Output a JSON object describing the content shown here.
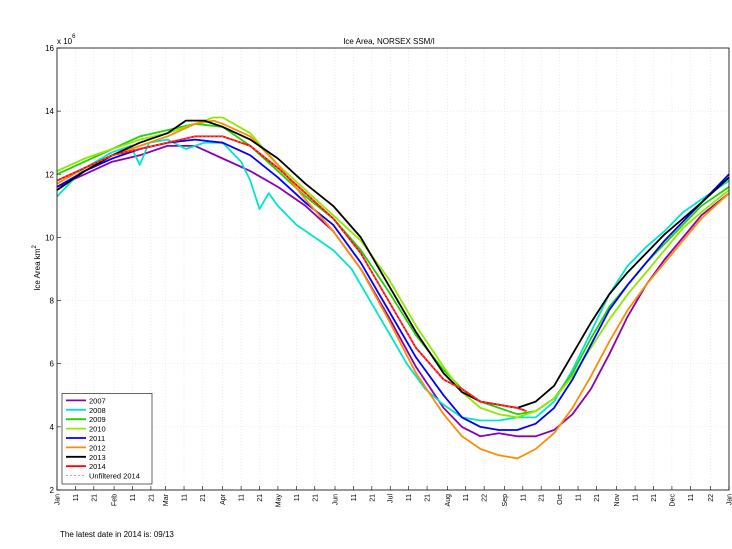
{
  "chart_data": {
    "type": "line",
    "title": "Ice Area, NORSEX SSM/I",
    "ylabel": "Ice Area km²",
    "ylabel_text": "Ice Area km",
    "ylabel_sup": "2",
    "exponent_base": "x 10",
    "exponent_power": "6",
    "ylim": [
      2,
      16
    ],
    "yticks": [
      2,
      4,
      6,
      8,
      10,
      12,
      14,
      16
    ],
    "xlim": [
      0,
      365
    ],
    "xticks": [
      {
        "d": 0,
        "label": "Jan"
      },
      {
        "d": 10,
        "label": "11"
      },
      {
        "d": 20,
        "label": "21"
      },
      {
        "d": 31,
        "label": "Feb"
      },
      {
        "d": 41,
        "label": "11"
      },
      {
        "d": 51,
        "label": "21"
      },
      {
        "d": 59,
        "label": "Mar"
      },
      {
        "d": 69,
        "label": "11"
      },
      {
        "d": 79,
        "label": "21"
      },
      {
        "d": 90,
        "label": "Apr"
      },
      {
        "d": 100,
        "label": "11"
      },
      {
        "d": 110,
        "label": "21"
      },
      {
        "d": 120,
        "label": "May"
      },
      {
        "d": 130,
        "label": "11"
      },
      {
        "d": 140,
        "label": "21"
      },
      {
        "d": 151,
        "label": "Jun"
      },
      {
        "d": 161,
        "label": "11"
      },
      {
        "d": 171,
        "label": "21"
      },
      {
        "d": 181,
        "label": "Jul"
      },
      {
        "d": 191,
        "label": "11"
      },
      {
        "d": 201,
        "label": "21"
      },
      {
        "d": 212,
        "label": "Aug"
      },
      {
        "d": 222,
        "label": "11"
      },
      {
        "d": 232,
        "label": "22"
      },
      {
        "d": 243,
        "label": "Sep"
      },
      {
        "d": 253,
        "label": "11"
      },
      {
        "d": 263,
        "label": "21"
      },
      {
        "d": 273,
        "label": "Oct"
      },
      {
        "d": 283,
        "label": "11"
      },
      {
        "d": 293,
        "label": "21"
      },
      {
        "d": 304,
        "label": "Nov"
      },
      {
        "d": 314,
        "label": "11"
      },
      {
        "d": 324,
        "label": "21"
      },
      {
        "d": 334,
        "label": "Dec"
      },
      {
        "d": 344,
        "label": "11"
      },
      {
        "d": 355,
        "label": "22"
      },
      {
        "d": 365,
        "label": "Jan"
      }
    ],
    "grid": true,
    "legend_position": "bottom-left",
    "series": [
      {
        "name": "2007",
        "color": "#8c00b4",
        "points": [
          [
            0,
            11.6
          ],
          [
            15,
            12.0
          ],
          [
            30,
            12.4
          ],
          [
            45,
            12.6
          ],
          [
            60,
            12.9
          ],
          [
            75,
            12.9
          ],
          [
            90,
            12.5
          ],
          [
            105,
            12.1
          ],
          [
            120,
            11.6
          ],
          [
            135,
            11.0
          ],
          [
            150,
            10.2
          ],
          [
            165,
            9.0
          ],
          [
            180,
            7.5
          ],
          [
            195,
            5.9
          ],
          [
            210,
            4.6
          ],
          [
            220,
            4.0
          ],
          [
            230,
            3.7
          ],
          [
            240,
            3.8
          ],
          [
            250,
            3.7
          ],
          [
            260,
            3.7
          ],
          [
            270,
            3.9
          ],
          [
            280,
            4.4
          ],
          [
            290,
            5.2
          ],
          [
            300,
            6.3
          ],
          [
            310,
            7.5
          ],
          [
            320,
            8.5
          ],
          [
            330,
            9.3
          ],
          [
            340,
            10.0
          ],
          [
            350,
            10.7
          ],
          [
            365,
            11.4
          ]
        ]
      },
      {
        "name": "2008",
        "color": "#00e5d0",
        "points": [
          [
            0,
            11.3
          ],
          [
            15,
            12.2
          ],
          [
            30,
            12.7
          ],
          [
            40,
            12.9
          ],
          [
            45,
            12.3
          ],
          [
            50,
            13.0
          ],
          [
            60,
            13.1
          ],
          [
            70,
            12.8
          ],
          [
            80,
            13.0
          ],
          [
            90,
            13.0
          ],
          [
            100,
            12.4
          ],
          [
            105,
            11.8
          ],
          [
            110,
            10.9
          ],
          [
            115,
            11.4
          ],
          [
            120,
            11.0
          ],
          [
            130,
            10.4
          ],
          [
            140,
            10.0
          ],
          [
            150,
            9.6
          ],
          [
            160,
            9.0
          ],
          [
            170,
            8.0
          ],
          [
            180,
            7.0
          ],
          [
            190,
            6.0
          ],
          [
            200,
            5.2
          ],
          [
            210,
            4.7
          ],
          [
            220,
            4.3
          ],
          [
            230,
            4.2
          ],
          [
            240,
            4.2
          ],
          [
            250,
            4.3
          ],
          [
            260,
            4.3
          ],
          [
            270,
            4.8
          ],
          [
            280,
            5.8
          ],
          [
            290,
            7.0
          ],
          [
            300,
            8.2
          ],
          [
            310,
            9.1
          ],
          [
            320,
            9.7
          ],
          [
            330,
            10.2
          ],
          [
            340,
            10.8
          ],
          [
            350,
            11.2
          ],
          [
            365,
            11.8
          ]
        ]
      },
      {
        "name": "2009",
        "color": "#1ed400",
        "points": [
          [
            0,
            12.0
          ],
          [
            15,
            12.4
          ],
          [
            30,
            12.8
          ],
          [
            45,
            13.2
          ],
          [
            60,
            13.4
          ],
          [
            75,
            13.6
          ],
          [
            90,
            13.5
          ],
          [
            105,
            12.9
          ],
          [
            120,
            12.1
          ],
          [
            135,
            11.3
          ],
          [
            150,
            10.6
          ],
          [
            165,
            9.6
          ],
          [
            180,
            8.3
          ],
          [
            195,
            6.9
          ],
          [
            210,
            5.8
          ],
          [
            220,
            5.2
          ],
          [
            230,
            4.8
          ],
          [
            240,
            4.6
          ],
          [
            250,
            4.4
          ],
          [
            260,
            4.5
          ],
          [
            270,
            4.9
          ],
          [
            280,
            5.7
          ],
          [
            290,
            6.8
          ],
          [
            300,
            7.8
          ],
          [
            310,
            8.5
          ],
          [
            320,
            9.2
          ],
          [
            330,
            9.8
          ],
          [
            340,
            10.4
          ],
          [
            350,
            11.0
          ],
          [
            365,
            11.6
          ]
        ]
      },
      {
        "name": "2010",
        "color": "#90e800",
        "points": [
          [
            0,
            12.1
          ],
          [
            15,
            12.5
          ],
          [
            30,
            12.8
          ],
          [
            45,
            13.1
          ],
          [
            60,
            13.3
          ],
          [
            75,
            13.6
          ],
          [
            85,
            13.8
          ],
          [
            90,
            13.8
          ],
          [
            105,
            13.3
          ],
          [
            120,
            12.3
          ],
          [
            135,
            11.5
          ],
          [
            150,
            10.7
          ],
          [
            165,
            9.9
          ],
          [
            180,
            8.7
          ],
          [
            195,
            7.2
          ],
          [
            210,
            5.9
          ],
          [
            220,
            5.1
          ],
          [
            230,
            4.6
          ],
          [
            240,
            4.4
          ],
          [
            250,
            4.3
          ],
          [
            260,
            4.5
          ],
          [
            270,
            4.9
          ],
          [
            280,
            5.6
          ],
          [
            290,
            6.5
          ],
          [
            300,
            7.4
          ],
          [
            310,
            8.2
          ],
          [
            320,
            8.9
          ],
          [
            330,
            9.6
          ],
          [
            340,
            10.3
          ],
          [
            350,
            10.8
          ],
          [
            365,
            11.5
          ]
        ]
      },
      {
        "name": "2011",
        "color": "#0000ff",
        "points": [
          [
            0,
            11.6
          ],
          [
            15,
            12.1
          ],
          [
            30,
            12.5
          ],
          [
            45,
            12.8
          ],
          [
            60,
            13.0
          ],
          [
            75,
            13.1
          ],
          [
            90,
            13.0
          ],
          [
            105,
            12.6
          ],
          [
            120,
            11.9
          ],
          [
            135,
            11.1
          ],
          [
            150,
            10.4
          ],
          [
            165,
            9.2
          ],
          [
            180,
            7.7
          ],
          [
            195,
            6.2
          ],
          [
            210,
            5.0
          ],
          [
            220,
            4.3
          ],
          [
            230,
            4.0
          ],
          [
            240,
            3.9
          ],
          [
            250,
            3.9
          ],
          [
            260,
            4.1
          ],
          [
            270,
            4.6
          ],
          [
            280,
            5.5
          ],
          [
            290,
            6.6
          ],
          [
            300,
            7.7
          ],
          [
            310,
            8.5
          ],
          [
            320,
            9.2
          ],
          [
            330,
            9.9
          ],
          [
            340,
            10.5
          ],
          [
            350,
            11.1
          ],
          [
            365,
            12.0
          ]
        ]
      },
      {
        "name": "2012",
        "color": "#ff8c00",
        "points": [
          [
            0,
            11.7
          ],
          [
            15,
            12.2
          ],
          [
            30,
            12.6
          ],
          [
            45,
            12.9
          ],
          [
            60,
            13.2
          ],
          [
            75,
            13.6
          ],
          [
            85,
            13.7
          ],
          [
            90,
            13.6
          ],
          [
            105,
            13.2
          ],
          [
            120,
            12.3
          ],
          [
            135,
            11.2
          ],
          [
            150,
            10.2
          ],
          [
            165,
            9.0
          ],
          [
            180,
            7.4
          ],
          [
            195,
            5.7
          ],
          [
            210,
            4.4
          ],
          [
            220,
            3.7
          ],
          [
            230,
            3.3
          ],
          [
            240,
            3.1
          ],
          [
            250,
            3.0
          ],
          [
            260,
            3.3
          ],
          [
            270,
            3.8
          ],
          [
            280,
            4.6
          ],
          [
            290,
            5.6
          ],
          [
            300,
            6.7
          ],
          [
            310,
            7.7
          ],
          [
            320,
            8.5
          ],
          [
            330,
            9.2
          ],
          [
            340,
            9.9
          ],
          [
            350,
            10.6
          ],
          [
            365,
            11.4
          ]
        ]
      },
      {
        "name": "2013",
        "color": "#000000",
        "points": [
          [
            0,
            11.5
          ],
          [
            15,
            12.1
          ],
          [
            30,
            12.6
          ],
          [
            45,
            13.0
          ],
          [
            60,
            13.3
          ],
          [
            70,
            13.7
          ],
          [
            80,
            13.7
          ],
          [
            90,
            13.5
          ],
          [
            105,
            13.1
          ],
          [
            120,
            12.5
          ],
          [
            135,
            11.7
          ],
          [
            150,
            11.0
          ],
          [
            165,
            10.0
          ],
          [
            180,
            8.5
          ],
          [
            195,
            7.0
          ],
          [
            210,
            5.7
          ],
          [
            220,
            5.1
          ],
          [
            230,
            4.8
          ],
          [
            240,
            4.7
          ],
          [
            250,
            4.6
          ],
          [
            260,
            4.8
          ],
          [
            270,
            5.3
          ],
          [
            280,
            6.3
          ],
          [
            290,
            7.3
          ],
          [
            300,
            8.2
          ],
          [
            310,
            8.9
          ],
          [
            320,
            9.5
          ],
          [
            330,
            10.1
          ],
          [
            340,
            10.6
          ],
          [
            350,
            11.1
          ],
          [
            365,
            11.9
          ]
        ]
      },
      {
        "name": "2014",
        "color": "#ff0000",
        "points": [
          [
            0,
            11.8
          ],
          [
            15,
            12.2
          ],
          [
            30,
            12.6
          ],
          [
            45,
            12.8
          ],
          [
            60,
            13.0
          ],
          [
            75,
            13.2
          ],
          [
            90,
            13.2
          ],
          [
            105,
            12.9
          ],
          [
            120,
            12.2
          ],
          [
            135,
            11.4
          ],
          [
            150,
            10.6
          ],
          [
            165,
            9.5
          ],
          [
            180,
            8.0
          ],
          [
            195,
            6.5
          ],
          [
            210,
            5.5
          ],
          [
            220,
            5.2
          ],
          [
            230,
            4.8
          ],
          [
            240,
            4.7
          ],
          [
            250,
            4.6
          ],
          [
            255,
            4.5
          ]
        ]
      },
      {
        "name": "Unfiltered 2014",
        "color": "#ff6666",
        "dashed": true,
        "points": [
          [
            0,
            11.8
          ],
          [
            15,
            12.2
          ],
          [
            30,
            12.6
          ],
          [
            45,
            12.8
          ],
          [
            60,
            13.0
          ],
          [
            75,
            13.2
          ],
          [
            90,
            13.2
          ],
          [
            105,
            12.9
          ],
          [
            120,
            12.2
          ],
          [
            135,
            11.4
          ],
          [
            150,
            10.6
          ],
          [
            165,
            9.5
          ],
          [
            180,
            8.0
          ],
          [
            195,
            6.5
          ],
          [
            210,
            5.5
          ],
          [
            220,
            5.2
          ],
          [
            230,
            4.8
          ],
          [
            240,
            4.7
          ],
          [
            250,
            4.6
          ],
          [
            255,
            4.5
          ]
        ]
      }
    ]
  },
  "footer_note": "The latest date in 2014 is: 09/13"
}
